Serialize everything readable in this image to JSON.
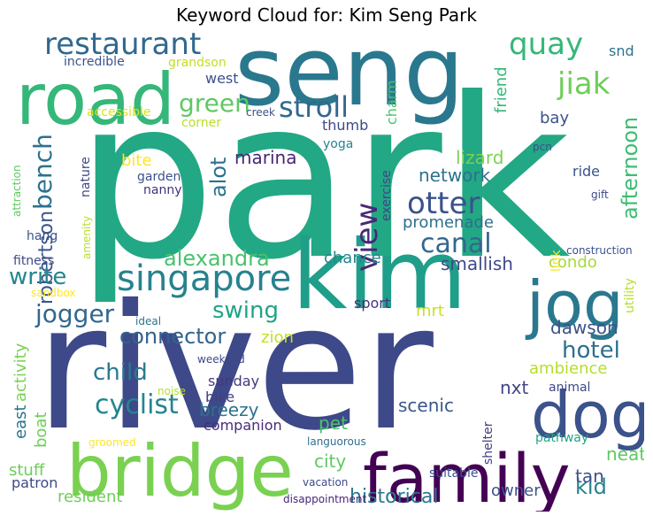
{
  "chart_data": {
    "type": "wordcloud",
    "title": "Keyword Cloud for: Kim Seng Park",
    "words": [
      {
        "text": "park",
        "color": "#22a884"
      },
      {
        "text": "river",
        "color": "#3e4989"
      },
      {
        "text": "seng",
        "color": "#2a788e"
      },
      {
        "text": "kim",
        "color": "#1f9e89"
      },
      {
        "text": "road",
        "color": "#35b779"
      },
      {
        "text": "bridge",
        "color": "#7ad151"
      },
      {
        "text": "family",
        "color": "#440154"
      },
      {
        "text": "dog",
        "color": "#3b528b"
      },
      {
        "text": "jog",
        "color": "#2a788e"
      },
      {
        "text": "singapore",
        "color": "#26828e"
      },
      {
        "text": "restaurant",
        "color": "#31688e"
      },
      {
        "text": "quay",
        "color": "#35b779"
      },
      {
        "text": "jiak",
        "color": "#6ece58"
      },
      {
        "text": "stroll",
        "color": "#31688e"
      },
      {
        "text": "green",
        "color": "#5ec962"
      },
      {
        "text": "otter",
        "color": "#3b528b"
      },
      {
        "text": "view",
        "color": "#482878"
      },
      {
        "text": "canal",
        "color": "#31688e"
      },
      {
        "text": "jogger",
        "color": "#31688e"
      },
      {
        "text": "alexandra",
        "color": "#4ac16d"
      },
      {
        "text": "swing",
        "color": "#20a486"
      },
      {
        "text": "connector",
        "color": "#33638d"
      },
      {
        "text": "bench",
        "color": "#2c728e"
      },
      {
        "text": "robertson",
        "color": "#39568c"
      },
      {
        "text": "afternoon",
        "color": "#3fbc73"
      },
      {
        "text": "child",
        "color": "#2a788e"
      },
      {
        "text": "cyclist",
        "color": "#25858e"
      },
      {
        "text": "hotel",
        "color": "#2d708e"
      },
      {
        "text": "write",
        "color": "#24868e"
      },
      {
        "text": "alot",
        "color": "#2c728e"
      },
      {
        "text": "marina",
        "color": "#482677"
      },
      {
        "text": "network",
        "color": "#2c728e"
      },
      {
        "text": "promenade",
        "color": "#2d708e"
      },
      {
        "text": "lizard",
        "color": "#7ad151"
      },
      {
        "text": "condo",
        "color": "#a5db36"
      },
      {
        "text": "smallish",
        "color": "#3e4989"
      },
      {
        "text": "chance",
        "color": "#25858e"
      },
      {
        "text": "dawson",
        "color": "#3b528b"
      },
      {
        "text": "ambience",
        "color": "#b5de2b"
      },
      {
        "text": "nxt",
        "color": "#404688"
      },
      {
        "text": "scenic",
        "color": "#39568c"
      },
      {
        "text": "kid",
        "color": "#26828e"
      },
      {
        "text": "tan",
        "color": "#3b528b"
      },
      {
        "text": "neat",
        "color": "#5ec962"
      },
      {
        "text": "owner",
        "color": "#3b528b"
      },
      {
        "text": "historical",
        "color": "#2a788e"
      },
      {
        "text": "city",
        "color": "#5ec962"
      },
      {
        "text": "pet",
        "color": "#4ac16d"
      },
      {
        "text": "breezy",
        "color": "#2c728e"
      },
      {
        "text": "sunday",
        "color": "#453781"
      },
      {
        "text": "bike",
        "color": "#433e85"
      },
      {
        "text": "zion",
        "color": "#c2df23"
      },
      {
        "text": "mrt",
        "color": "#cae11f"
      },
      {
        "text": "sport",
        "color": "#46327e"
      },
      {
        "text": "east",
        "color": "#2c728e"
      },
      {
        "text": "boat",
        "color": "#6ece58"
      },
      {
        "text": "activity",
        "color": "#7ad151"
      },
      {
        "text": "companion",
        "color": "#472c7a"
      },
      {
        "text": "resident",
        "color": "#6ece58"
      },
      {
        "text": "stuff",
        "color": "#6ece58"
      },
      {
        "text": "patron",
        "color": "#3e4989"
      },
      {
        "text": "fitness",
        "color": "#3e4989"
      },
      {
        "text": "hang",
        "color": "#3b528b"
      },
      {
        "text": "attraction",
        "color": "#5ec962"
      },
      {
        "text": "amenity",
        "color": "#b5de2b"
      },
      {
        "text": "sandbox",
        "color": "#fde725"
      },
      {
        "text": "thumb",
        "color": "#3e4989"
      },
      {
        "text": "bite",
        "color": "#fde725"
      },
      {
        "text": "garden",
        "color": "#3b528b"
      },
      {
        "text": "nanny",
        "color": "#46327e"
      },
      {
        "text": "nature",
        "color": "#3e4989"
      },
      {
        "text": "yoga",
        "color": "#25858e"
      },
      {
        "text": "corner",
        "color": "#b5de2b"
      },
      {
        "text": "accessible",
        "color": "#d8e219"
      },
      {
        "text": "creek",
        "color": "#3b528b"
      },
      {
        "text": "incredible",
        "color": "#3b528b"
      },
      {
        "text": "grandson",
        "color": "#c2df23"
      },
      {
        "text": "west",
        "color": "#3b528b"
      },
      {
        "text": "charm",
        "color": "#4ac16d"
      },
      {
        "text": "friend",
        "color": "#35b779"
      },
      {
        "text": "snd",
        "color": "#2c728e"
      },
      {
        "text": "bay",
        "color": "#3b528b"
      },
      {
        "text": "exercise",
        "color": "#414487"
      },
      {
        "text": "ride",
        "color": "#3b528b"
      },
      {
        "text": "gift",
        "color": "#3e4989"
      },
      {
        "text": "pcn",
        "color": "#3b528b"
      },
      {
        "text": "link",
        "color": "#fde725"
      },
      {
        "text": "construction",
        "color": "#3b528b"
      },
      {
        "text": "utility",
        "color": "#b5de2b"
      },
      {
        "text": "animal",
        "color": "#3e4989"
      },
      {
        "text": "shelter",
        "color": "#433e85"
      },
      {
        "text": "pathway",
        "color": "#20a486"
      },
      {
        "text": "suitable",
        "color": "#3b528b"
      },
      {
        "text": "languorous",
        "color": "#2c728e"
      },
      {
        "text": "disappointment",
        "color": "#482677"
      },
      {
        "text": "vacation",
        "color": "#3e4989"
      },
      {
        "text": "groomed",
        "color": "#fde725"
      },
      {
        "text": "noise",
        "color": "#b5de2b"
      },
      {
        "text": "weekend",
        "color": "#3e4989"
      },
      {
        "text": "ideal",
        "color": "#2c728e"
      }
    ]
  }
}
